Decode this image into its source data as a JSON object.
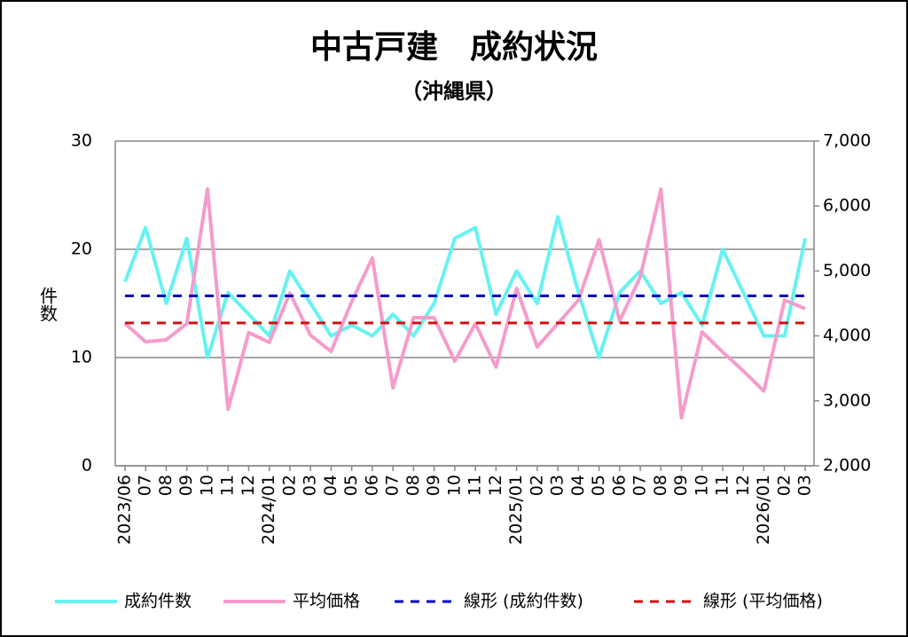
{
  "chart_data": {
    "type": "line",
    "title": "中古戸建　成約状況",
    "subtitle": "（沖縄県）",
    "y_label": "件数",
    "categories": [
      "2023/06",
      "07",
      "08",
      "09",
      "10",
      "11",
      "12",
      "2024/01",
      "02",
      "03",
      "04",
      "05",
      "06",
      "07",
      "08",
      "09",
      "10",
      "11",
      "12",
      "2025/01",
      "02",
      "03",
      "04",
      "05",
      "06",
      "07",
      "08",
      "09",
      "10",
      "11",
      "12",
      "2026/01",
      "02",
      "03"
    ],
    "series": [
      {
        "name": "成約件数",
        "color": "#66f2f2",
        "axis": "y",
        "values": [
          17,
          22,
          15,
          21,
          10,
          16,
          14,
          12,
          18,
          15,
          12,
          13,
          12,
          14,
          12,
          15,
          21,
          22,
          14,
          18,
          15,
          23,
          16,
          10,
          16,
          18,
          15,
          16,
          13,
          20,
          16,
          12,
          12,
          21
        ]
      },
      {
        "name": "平均価格",
        "color": "#f59ccb",
        "axis": "y2",
        "values": [
          4190,
          3910,
          3940,
          4190,
          6260,
          2870,
          4050,
          3900,
          4660,
          4010,
          3760,
          4530,
          5200,
          3200,
          4280,
          4280,
          3610,
          4190,
          3520,
          4730,
          3830,
          4190,
          4550,
          5480,
          4230,
          4910,
          6260,
          2740,
          4060,
          3750,
          3460,
          3150,
          4550,
          4420
        ]
      },
      {
        "name": "線形 (成約件数)",
        "color": "#0000c0",
        "axis": "y",
        "dashed": true,
        "values": [
          15.7,
          15.7,
          15.7,
          15.7,
          15.7,
          15.7,
          15.7,
          15.7,
          15.7,
          15.7,
          15.7,
          15.7,
          15.7,
          15.7,
          15.7,
          15.7,
          15.7,
          15.7,
          15.7,
          15.7,
          15.7,
          15.7,
          15.7,
          15.7,
          15.7,
          15.7,
          15.7,
          15.7,
          15.7,
          15.7,
          15.7,
          15.7,
          15.7,
          15.7
        ]
      },
      {
        "name": "線形 (平均価格)",
        "color": "#d01010",
        "axis": "y2",
        "dashed": true,
        "values": [
          4200,
          4200,
          4200,
          4200,
          4200,
          4200,
          4200,
          4200,
          4200,
          4200,
          4200,
          4200,
          4200,
          4200,
          4200,
          4200,
          4200,
          4200,
          4200,
          4200,
          4200,
          4200,
          4200,
          4200,
          4200,
          4200,
          4200,
          4200,
          4200,
          4200,
          4200,
          4200,
          4200,
          4200
        ]
      }
    ],
    "ylim": [
      0,
      30
    ],
    "yticks": [
      0,
      10,
      20,
      30
    ],
    "y2lim": [
      2000,
      7000
    ],
    "y2ticks": [
      {
        "value": 2000,
        "label": "2,000"
      },
      {
        "value": 3000,
        "label": "3,000"
      },
      {
        "value": 4000,
        "label": "4,000"
      },
      {
        "value": 5000,
        "label": "5,000"
      },
      {
        "value": 6000,
        "label": "6,000"
      },
      {
        "value": 7000,
        "label": "7,000"
      }
    ],
    "grid": true,
    "legend": "bottom"
  }
}
